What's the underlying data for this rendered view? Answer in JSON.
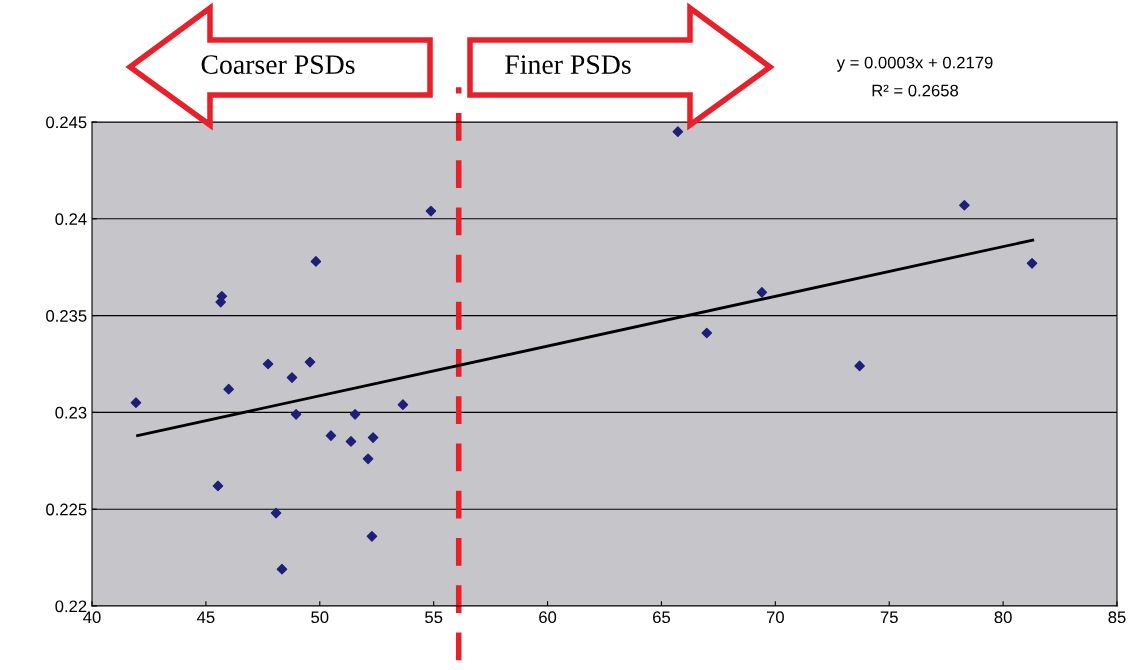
{
  "chart_data": {
    "type": "scatter",
    "x": [
      41.93,
      45.7,
      45.65,
      46.0,
      45.53,
      47.73,
      48.08,
      48.34,
      48.78,
      48.96,
      49.57,
      49.83,
      50.49,
      51.37,
      51.55,
      52.12,
      52.29,
      52.34,
      53.65,
      54.88,
      65.72,
      66.99,
      69.41,
      73.7,
      78.3,
      81.27
    ],
    "series": [
      {
        "color": "#1f1f7a",
        "marker": "diamond",
        "values": [
          0.2305,
          0.236,
          0.2357,
          0.2312,
          0.2262,
          0.2325,
          0.2248,
          0.2219,
          0.2318,
          0.2299,
          0.2326,
          0.2378,
          0.2288,
          0.2285,
          0.2299,
          0.2276,
          0.2236,
          0.2287,
          0.2304,
          0.2404,
          0.2445,
          0.2341,
          0.2362,
          0.2324,
          0.2407,
          0.2377
        ]
      },
      {
        "type": "line",
        "color": "#000000",
        "marker": "none",
        "x": [
          42.0,
          81.3
        ],
        "values": [
          0.2288,
          0.2389
        ]
      }
    ],
    "xlim": [
      40,
      85
    ],
    "xticks": [
      40,
      45,
      50,
      55,
      60,
      65,
      70,
      75,
      80,
      85
    ],
    "ylim": [
      0.22,
      0.245
    ],
    "yticks": [
      0.22,
      0.225,
      0.23,
      0.235,
      0.24,
      0.245
    ],
    "grid": "y",
    "ref_lines": [
      {
        "axis": "x",
        "value": 56.1,
        "color": "#e8202a",
        "line_style": "dashed"
      }
    ],
    "annotations": [
      "Coarser PSDs",
      "Finer PSDs",
      "y = 0.0003x + 0.2179",
      "R² = 0.2658"
    ]
  }
}
